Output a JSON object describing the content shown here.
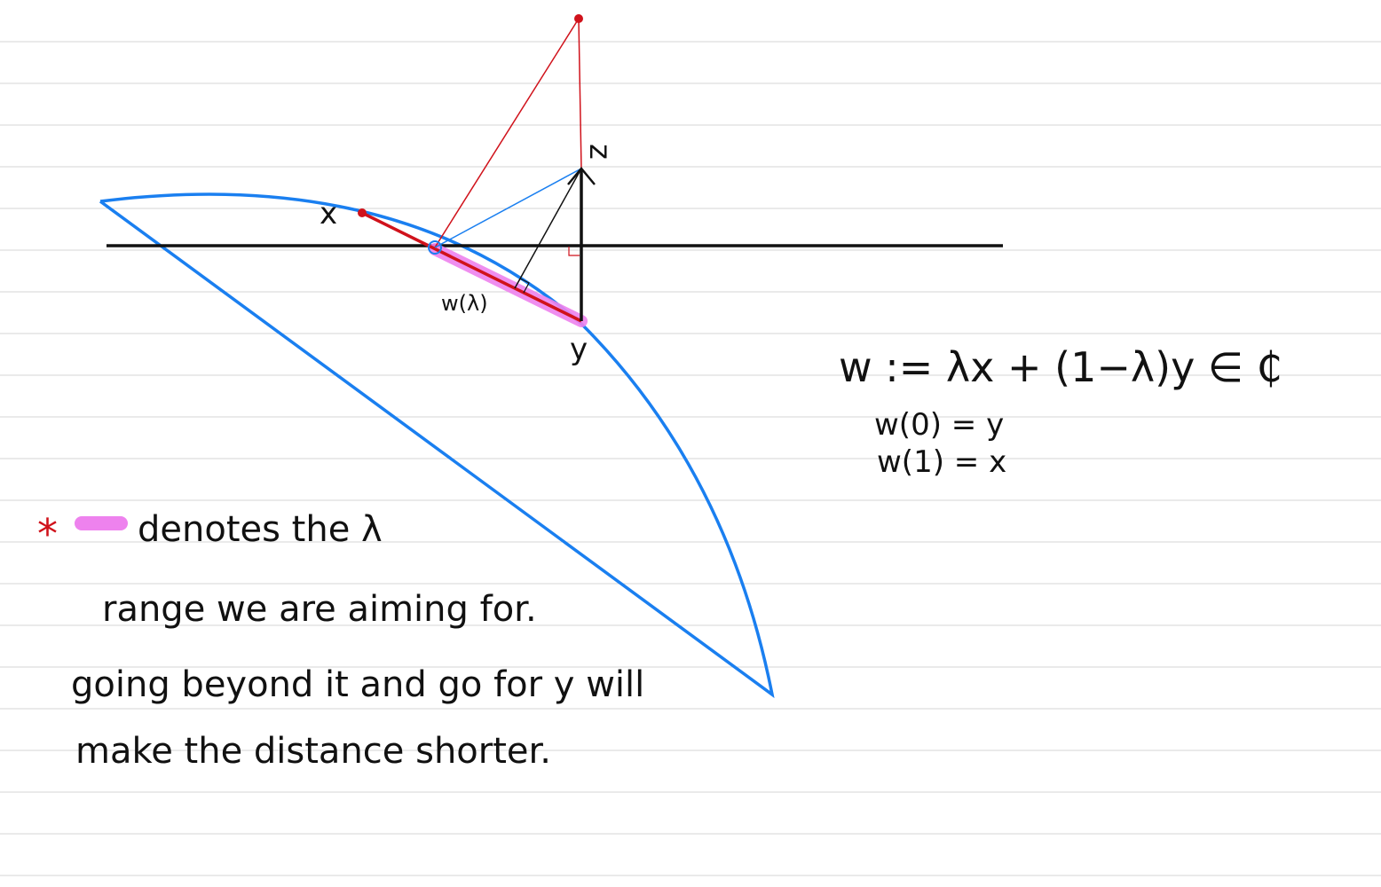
{
  "colors": {
    "ruled_line": "#d4d4d4",
    "black": "#111111",
    "blue": "#1a7ff0",
    "red": "#d0121b",
    "pink": "#ee82ee"
  },
  "diagram": {
    "labels": {
      "x": "x",
      "y": "y",
      "z": "z",
      "w_lambda": "w(λ)"
    },
    "formula": {
      "main": "w := λx + (1−λ)y ∈ ₵",
      "line1": "w(0) = y",
      "line2": "w(1) = x"
    },
    "note": {
      "asterisk": "*",
      "line1": "denotes the λ",
      "line2": "range we are aiming for.",
      "line3": "going beyond it and go for y will",
      "line4": "make the distance shorter."
    }
  }
}
